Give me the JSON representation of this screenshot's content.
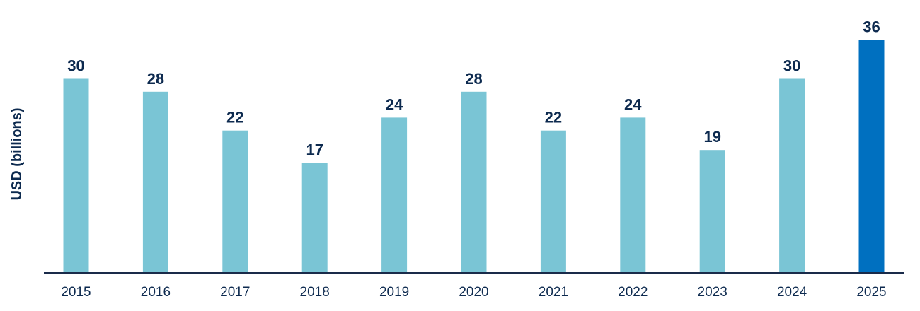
{
  "chart_data": {
    "type": "bar",
    "title": "",
    "xlabel": "",
    "ylabel": "USD (billions)",
    "categories": [
      "2015",
      "2016",
      "2017",
      "2018",
      "2019",
      "2020",
      "2021",
      "2022",
      "2023",
      "2024",
      "2025"
    ],
    "values": [
      30,
      28,
      22,
      17,
      24,
      28,
      22,
      24,
      19,
      30,
      36
    ],
    "data_labels": [
      "30",
      "28",
      "22",
      "17",
      "24",
      "28",
      "22",
      "24",
      "19",
      "30",
      "36"
    ],
    "highlight_index": 10,
    "ylim": [
      0,
      36
    ],
    "grid": false,
    "legend": "none",
    "colors": {
      "bar": "#7ac5d5",
      "highlight": "#0070c0",
      "label_text": "#0d2a4f",
      "axis_line": "#1a2b4a",
      "tick_text": "#0d2a4f"
    }
  }
}
